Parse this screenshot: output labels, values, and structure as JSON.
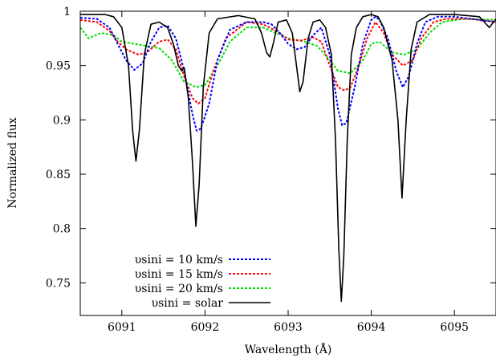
{
  "chart_data": {
    "type": "line",
    "title": "",
    "xlabel": "Wavelength (Å)",
    "ylabel": "Normalized flux",
    "xlim": [
      6090.5,
      6095.5
    ],
    "ylim": [
      0.72,
      1.0
    ],
    "x_ticks": [
      6091,
      6092,
      6093,
      6094,
      6095
    ],
    "x_tick_labels": [
      "6091",
      "6092",
      "6093",
      "6094",
      "6095"
    ],
    "y_ticks": [
      0.75,
      0.8,
      0.85,
      0.9,
      0.95,
      1.0
    ],
    "y_tick_labels": [
      "0.75",
      "0.8",
      "0.85",
      "0.9",
      "0.95",
      "1"
    ],
    "grid": false,
    "legend_position": "bottom-left",
    "series": [
      {
        "name": "υsini = 10 km/s",
        "color": "#0000ff",
        "dash": "dotted",
        "points": [
          [
            6090.5,
            0.994
          ],
          [
            6090.7,
            0.993
          ],
          [
            6090.85,
            0.985
          ],
          [
            6090.95,
            0.97
          ],
          [
            6091.05,
            0.955
          ],
          [
            6091.15,
            0.946
          ],
          [
            6091.25,
            0.952
          ],
          [
            6091.35,
            0.972
          ],
          [
            6091.45,
            0.985
          ],
          [
            6091.55,
            0.987
          ],
          [
            6091.65,
            0.975
          ],
          [
            6091.75,
            0.945
          ],
          [
            6091.85,
            0.905
          ],
          [
            6091.9,
            0.89
          ],
          [
            6091.95,
            0.892
          ],
          [
            6092.05,
            0.915
          ],
          [
            6092.15,
            0.955
          ],
          [
            6092.3,
            0.983
          ],
          [
            6092.5,
            0.99
          ],
          [
            6092.7,
            0.99
          ],
          [
            6092.8,
            0.988
          ],
          [
            6092.9,
            0.98
          ],
          [
            6093.0,
            0.97
          ],
          [
            6093.1,
            0.965
          ],
          [
            6093.2,
            0.967
          ],
          [
            6093.3,
            0.978
          ],
          [
            6093.4,
            0.985
          ],
          [
            6093.5,
            0.96
          ],
          [
            6093.6,
            0.91
          ],
          [
            6093.65,
            0.895
          ],
          [
            6093.7,
            0.897
          ],
          [
            6093.8,
            0.93
          ],
          [
            6093.9,
            0.97
          ],
          [
            6094.0,
            0.992
          ],
          [
            6094.05,
            0.995
          ],
          [
            6094.1,
            0.992
          ],
          [
            6094.2,
            0.975
          ],
          [
            6094.3,
            0.945
          ],
          [
            6094.38,
            0.93
          ],
          [
            6094.45,
            0.94
          ],
          [
            6094.55,
            0.97
          ],
          [
            6094.65,
            0.99
          ],
          [
            6094.8,
            0.995
          ],
          [
            6095.0,
            0.995
          ],
          [
            6095.2,
            0.993
          ],
          [
            6095.5,
            0.99
          ]
        ]
      },
      {
        "name": "υsini = 15 km/s",
        "color": "#ff0000",
        "dash": "dotted",
        "points": [
          [
            6090.5,
            0.992
          ],
          [
            6090.7,
            0.99
          ],
          [
            6090.85,
            0.982
          ],
          [
            6090.95,
            0.972
          ],
          [
            6091.05,
            0.965
          ],
          [
            6091.2,
            0.96
          ],
          [
            6091.3,
            0.962
          ],
          [
            6091.45,
            0.972
          ],
          [
            6091.55,
            0.974
          ],
          [
            6091.65,
            0.965
          ],
          [
            6091.75,
            0.94
          ],
          [
            6091.85,
            0.92
          ],
          [
            6091.92,
            0.915
          ],
          [
            6092.0,
            0.92
          ],
          [
            6092.1,
            0.945
          ],
          [
            6092.25,
            0.975
          ],
          [
            6092.5,
            0.99
          ],
          [
            6092.7,
            0.988
          ],
          [
            6092.9,
            0.98
          ],
          [
            6093.0,
            0.974
          ],
          [
            6093.15,
            0.973
          ],
          [
            6093.3,
            0.976
          ],
          [
            6093.4,
            0.972
          ],
          [
            6093.5,
            0.95
          ],
          [
            6093.6,
            0.93
          ],
          [
            6093.68,
            0.927
          ],
          [
            6093.75,
            0.93
          ],
          [
            6093.85,
            0.95
          ],
          [
            6093.95,
            0.975
          ],
          [
            6094.05,
            0.99
          ],
          [
            6094.15,
            0.98
          ],
          [
            6094.25,
            0.96
          ],
          [
            6094.38,
            0.95
          ],
          [
            6094.5,
            0.955
          ],
          [
            6094.6,
            0.975
          ],
          [
            6094.75,
            0.99
          ],
          [
            6094.9,
            0.993
          ],
          [
            6095.2,
            0.993
          ],
          [
            6095.5,
            0.99
          ]
        ]
      },
      {
        "name": "υsini = 20 km/s",
        "color": "#00dd00",
        "dash": "dotted",
        "points": [
          [
            6090.5,
            0.985
          ],
          [
            6090.6,
            0.975
          ],
          [
            6090.75,
            0.98
          ],
          [
            6090.9,
            0.978
          ],
          [
            6091.0,
            0.972
          ],
          [
            6091.15,
            0.97
          ],
          [
            6091.3,
            0.968
          ],
          [
            6091.45,
            0.966
          ],
          [
            6091.6,
            0.955
          ],
          [
            6091.75,
            0.935
          ],
          [
            6091.9,
            0.93
          ],
          [
            6092.0,
            0.932
          ],
          [
            6092.15,
            0.95
          ],
          [
            6092.3,
            0.972
          ],
          [
            6092.5,
            0.985
          ],
          [
            6092.7,
            0.985
          ],
          [
            6092.85,
            0.98
          ],
          [
            6093.0,
            0.975
          ],
          [
            6093.2,
            0.972
          ],
          [
            6093.35,
            0.968
          ],
          [
            6093.5,
            0.955
          ],
          [
            6093.6,
            0.945
          ],
          [
            6093.75,
            0.943
          ],
          [
            6093.9,
            0.955
          ],
          [
            6094.0,
            0.97
          ],
          [
            6094.1,
            0.972
          ],
          [
            6094.25,
            0.962
          ],
          [
            6094.4,
            0.96
          ],
          [
            6094.55,
            0.965
          ],
          [
            6094.7,
            0.98
          ],
          [
            6094.85,
            0.99
          ],
          [
            6095.1,
            0.993
          ],
          [
            6095.5,
            0.992
          ]
        ]
      },
      {
        "name": "υsini = solar",
        "color": "#000000",
        "dash": "solid",
        "points": [
          [
            6090.5,
            0.997
          ],
          [
            6090.8,
            0.997
          ],
          [
            6090.9,
            0.995
          ],
          [
            6091.0,
            0.985
          ],
          [
            6091.08,
            0.95
          ],
          [
            6091.13,
            0.89
          ],
          [
            6091.17,
            0.862
          ],
          [
            6091.21,
            0.89
          ],
          [
            6091.27,
            0.96
          ],
          [
            6091.35,
            0.988
          ],
          [
            6091.45,
            0.99
          ],
          [
            6091.55,
            0.985
          ],
          [
            6091.62,
            0.97
          ],
          [
            6091.68,
            0.95
          ],
          [
            6091.72,
            0.945
          ],
          [
            6091.75,
            0.948
          ],
          [
            6091.8,
            0.92
          ],
          [
            6091.85,
            0.86
          ],
          [
            6091.89,
            0.802
          ],
          [
            6091.93,
            0.84
          ],
          [
            6091.98,
            0.93
          ],
          [
            6092.05,
            0.98
          ],
          [
            6092.15,
            0.993
          ],
          [
            6092.4,
            0.996
          ],
          [
            6092.6,
            0.993
          ],
          [
            6092.68,
            0.98
          ],
          [
            6092.74,
            0.962
          ],
          [
            6092.78,
            0.958
          ],
          [
            6092.82,
            0.97
          ],
          [
            6092.88,
            0.99
          ],
          [
            6092.98,
            0.992
          ],
          [
            6093.05,
            0.98
          ],
          [
            6093.1,
            0.95
          ],
          [
            6093.14,
            0.926
          ],
          [
            6093.18,
            0.935
          ],
          [
            6093.24,
            0.975
          ],
          [
            6093.3,
            0.99
          ],
          [
            6093.38,
            0.992
          ],
          [
            6093.45,
            0.985
          ],
          [
            6093.52,
            0.96
          ],
          [
            6093.57,
            0.88
          ],
          [
            6093.61,
            0.78
          ],
          [
            6093.64,
            0.733
          ],
          [
            6093.67,
            0.775
          ],
          [
            6093.71,
            0.88
          ],
          [
            6093.76,
            0.96
          ],
          [
            6093.82,
            0.985
          ],
          [
            6093.9,
            0.995
          ],
          [
            6094.0,
            0.997
          ],
          [
            6094.08,
            0.995
          ],
          [
            6094.15,
            0.985
          ],
          [
            6094.25,
            0.955
          ],
          [
            6094.32,
            0.9
          ],
          [
            6094.37,
            0.828
          ],
          [
            6094.42,
            0.9
          ],
          [
            6094.48,
            0.965
          ],
          [
            6094.55,
            0.99
          ],
          [
            6094.7,
            0.997
          ],
          [
            6095.0,
            0.997
          ],
          [
            6095.3,
            0.995
          ],
          [
            6095.36,
            0.99
          ],
          [
            6095.42,
            0.985
          ],
          [
            6095.47,
            0.99
          ],
          [
            6095.5,
            0.993
          ]
        ]
      }
    ]
  }
}
